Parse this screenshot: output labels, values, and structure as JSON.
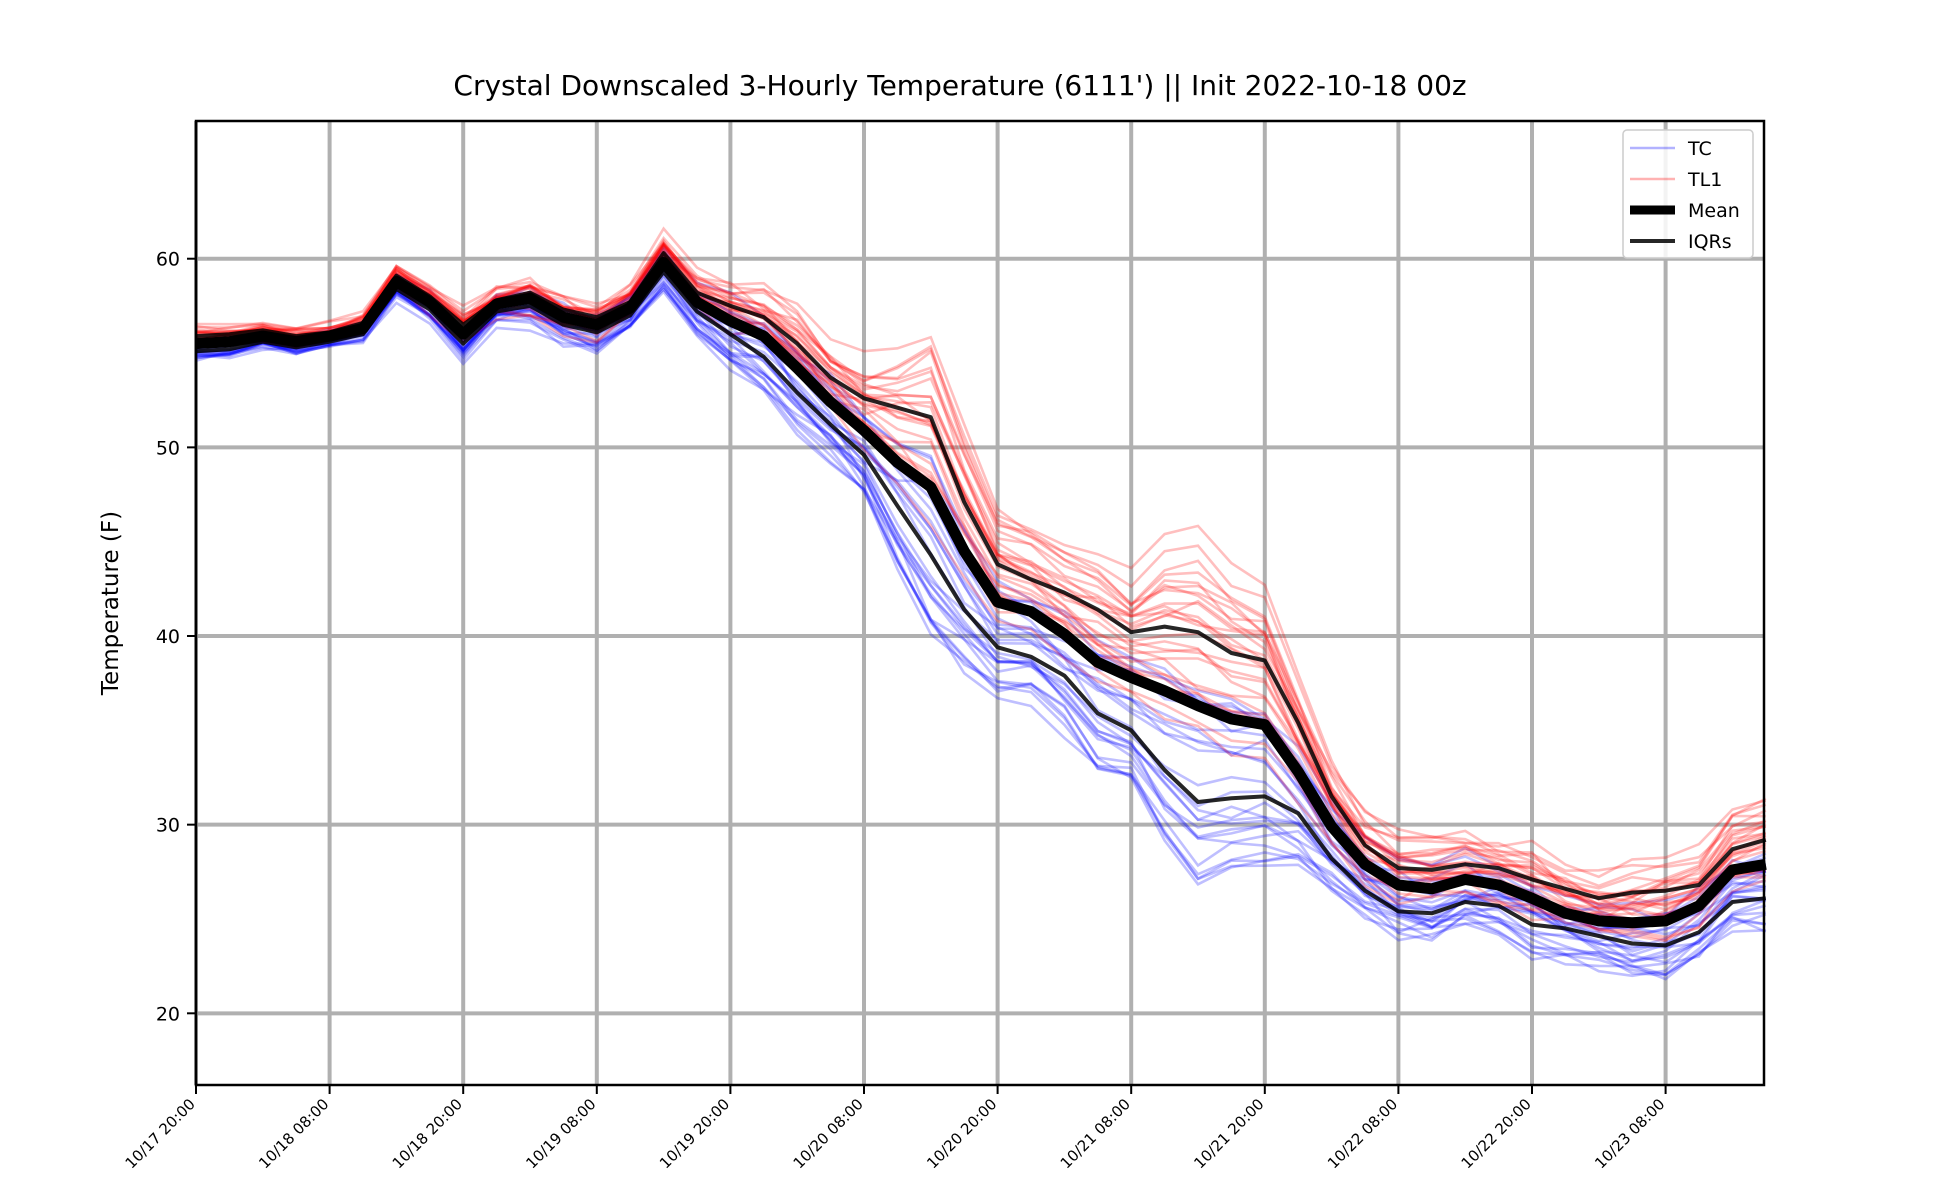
{
  "chart_data": {
    "type": "line",
    "title": "Crystal Downscaled 3-Hourly Temperature (6111') || Init 2022-10-18 00z",
    "xlabel": "",
    "ylabel": "Temperature (F)",
    "ylim": [
      16.2,
      67.3
    ],
    "yticks": [
      20,
      30,
      40,
      50,
      60
    ],
    "x_tick_labels": [
      "10/17 20:00",
      "10/18 08:00",
      "10/18 20:00",
      "10/19 08:00",
      "10/19 20:00",
      "10/20 08:00",
      "10/20 20:00",
      "10/21 08:00",
      "10/21 20:00",
      "10/22 08:00",
      "10/22 20:00",
      "10/23 08:00"
    ],
    "x_start": "10/17 20:00",
    "x_end": "10/23 17:00",
    "x_step": "3 hours",
    "grid": true,
    "legend_position": "top-right",
    "legend": [
      {
        "label": "TC",
        "color": "#0000ff",
        "style": "thin-translucent"
      },
      {
        "label": "TL1",
        "color": "#ff0000",
        "style": "thin-translucent"
      },
      {
        "label": "Mean",
        "color": "#000000",
        "style": "thick"
      },
      {
        "label": "IQRs",
        "color": "#000000",
        "style": "medium"
      }
    ],
    "series": [
      {
        "name": "Mean",
        "color": "#000000",
        "values": [
          55.5,
          55.6,
          55.9,
          55.6,
          55.9,
          56.3,
          58.8,
          57.7,
          56.0,
          57.6,
          57.9,
          56.9,
          56.5,
          57.4,
          59.8,
          57.7,
          56.7,
          55.9,
          54.2,
          52.4,
          50.9,
          49.2,
          47.9,
          44.5,
          41.8,
          41.3,
          40.1,
          38.6,
          37.8,
          37.1,
          36.3,
          35.6,
          35.3,
          32.8,
          29.9,
          27.9,
          26.8,
          26.6,
          27.1,
          26.8,
          26.1,
          25.3,
          24.9,
          24.8,
          24.9,
          25.7,
          27.6,
          27.9
        ]
      },
      {
        "name": "IQRs",
        "color": "#000000",
        "values": [
          55.9,
          56.0,
          56.2,
          55.9,
          56.1,
          56.6,
          59.1,
          58.0,
          56.5,
          57.8,
          58.2,
          57.3,
          56.9,
          57.7,
          60.3,
          58.2,
          57.5,
          56.9,
          55.5,
          53.7,
          52.6,
          52.1,
          51.6,
          47.1,
          43.8,
          43.0,
          42.3,
          41.4,
          40.2,
          40.5,
          40.2,
          39.1,
          38.7,
          35.4,
          31.5,
          28.9,
          27.7,
          27.6,
          27.9,
          27.7,
          27.1,
          26.6,
          26.1,
          26.4,
          26.5,
          26.8,
          28.7,
          29.2
        ]
      },
      {
        "name": "IQRs",
        "color": "#000000",
        "values": [
          55.1,
          55.2,
          55.6,
          55.3,
          55.6,
          56.0,
          58.4,
          57.3,
          55.5,
          57.2,
          57.5,
          56.5,
          56.1,
          57.0,
          59.3,
          57.2,
          56.0,
          54.8,
          52.9,
          51.2,
          49.6,
          46.9,
          44.3,
          41.4,
          39.4,
          38.9,
          37.9,
          35.9,
          35.0,
          32.9,
          31.2,
          31.4,
          31.5,
          30.6,
          28.2,
          26.5,
          25.4,
          25.3,
          25.9,
          25.7,
          24.7,
          24.5,
          24.1,
          23.7,
          23.6,
          24.3,
          25.9,
          26.1
        ]
      }
    ]
  }
}
